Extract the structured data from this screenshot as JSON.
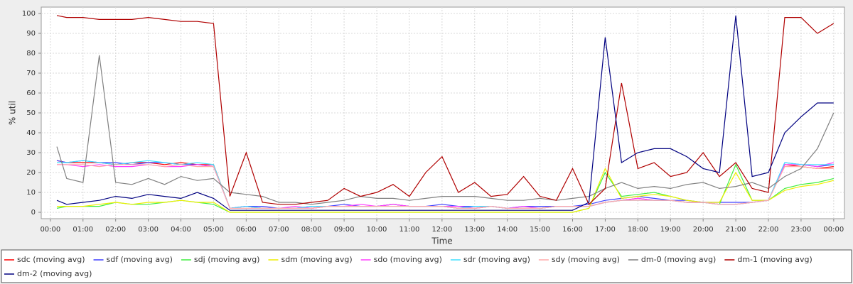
{
  "chart_data": {
    "type": "line",
    "x_label": "Time",
    "y_label": "% util",
    "x": [
      0.2,
      0.5,
      1.0,
      1.5,
      2.0,
      2.5,
      3.0,
      3.5,
      4.0,
      4.5,
      5.0,
      5.5,
      6.0,
      6.5,
      7.0,
      7.5,
      8.0,
      8.5,
      9.0,
      9.5,
      10.0,
      10.5,
      11.0,
      11.5,
      12.0,
      12.5,
      13.0,
      13.5,
      14.0,
      14.5,
      15.0,
      15.5,
      16.0,
      16.5,
      17.0,
      17.5,
      18.0,
      18.5,
      19.0,
      19.5,
      20.0,
      20.5,
      21.0,
      21.5,
      22.0,
      22.5,
      23.0,
      23.5,
      24.0
    ],
    "xlim": [
      -0.28,
      24.33
    ],
    "xticks": [
      {
        "value": 0,
        "label": "00:00"
      },
      {
        "value": 1,
        "label": "01:00"
      },
      {
        "value": 2,
        "label": "02:00"
      },
      {
        "value": 3,
        "label": "03:00"
      },
      {
        "value": 4,
        "label": "04:00"
      },
      {
        "value": 5,
        "label": "05:00"
      },
      {
        "value": 6,
        "label": "06:00"
      },
      {
        "value": 7,
        "label": "07:00"
      },
      {
        "value": 8,
        "label": "08:00"
      },
      {
        "value": 9,
        "label": "09:00"
      },
      {
        "value": 10,
        "label": "10:00"
      },
      {
        "value": 11,
        "label": "11:00"
      },
      {
        "value": 12,
        "label": "12:00"
      },
      {
        "value": 13,
        "label": "13:00"
      },
      {
        "value": 14,
        "label": "14:00"
      },
      {
        "value": 15,
        "label": "15:00"
      },
      {
        "value": 16,
        "label": "16:00"
      },
      {
        "value": 17,
        "label": "17:00"
      },
      {
        "value": 18,
        "label": "18:00"
      },
      {
        "value": 19,
        "label": "19:00"
      },
      {
        "value": 20,
        "label": "20:00"
      },
      {
        "value": 21,
        "label": "21:00"
      },
      {
        "value": 22,
        "label": "22:00"
      },
      {
        "value": 23,
        "label": "23:00"
      },
      {
        "value": 24,
        "label": "00:00"
      }
    ],
    "ylim": [
      -3.2,
      103.2
    ],
    "yticks": [
      0,
      10,
      20,
      30,
      40,
      50,
      60,
      70,
      80,
      90,
      100
    ],
    "grid": true,
    "legend": "bottom",
    "series": [
      {
        "name": "sdc (moving avg)",
        "color": "#ff0000",
        "values": [
          26,
          25,
          25,
          25,
          24,
          25,
          25,
          24,
          25,
          24,
          24,
          2,
          3,
          2,
          2,
          2,
          2,
          3,
          3,
          3,
          3,
          4,
          3,
          3,
          3,
          2,
          2,
          3,
          2,
          2,
          2,
          3,
          3,
          3,
          5,
          6,
          7,
          6,
          6,
          5,
          5,
          4,
          4,
          5,
          6,
          24,
          23,
          22,
          23
        ]
      },
      {
        "name": "sdf (moving avg)",
        "color": "#4040ff",
        "values": [
          26,
          25,
          26,
          25,
          25,
          24,
          25,
          25,
          24,
          24,
          23,
          2,
          3,
          3,
          2,
          2,
          3,
          3,
          4,
          3,
          3,
          4,
          3,
          3,
          4,
          3,
          3,
          3,
          2,
          3,
          3,
          3,
          3,
          4,
          6,
          7,
          8,
          7,
          6,
          6,
          5,
          5,
          5,
          5,
          6,
          25,
          24,
          23,
          24
        ]
      },
      {
        "name": "sdj (moving avg)",
        "color": "#40ee40",
        "values": [
          2,
          3,
          3,
          3,
          5,
          4,
          4,
          5,
          6,
          5,
          4,
          0,
          0,
          0,
          0,
          0,
          0,
          0,
          0,
          0,
          0,
          0,
          0,
          0,
          0,
          0,
          0,
          0,
          0,
          0,
          0,
          0,
          0,
          2,
          20,
          8,
          9,
          10,
          8,
          6,
          5,
          4,
          24,
          6,
          6,
          12,
          14,
          15,
          17
        ]
      },
      {
        "name": "sdm (moving avg)",
        "color": "#eeee00",
        "values": [
          3,
          3,
          3,
          4,
          5,
          4,
          5,
          5,
          6,
          5,
          5,
          0,
          0,
          0,
          0,
          0,
          0,
          0,
          0,
          0,
          0,
          0,
          0,
          0,
          0,
          0,
          0,
          0,
          0,
          0,
          0,
          0,
          0,
          2,
          22,
          7,
          8,
          9,
          8,
          6,
          5,
          5,
          20,
          6,
          6,
          11,
          13,
          14,
          16
        ]
      },
      {
        "name": "sdo (moving avg)",
        "color": "#ff40ff",
        "values": [
          24,
          24,
          23,
          24,
          23,
          23,
          24,
          23,
          23,
          24,
          23,
          2,
          3,
          2,
          2,
          3,
          2,
          3,
          3,
          4,
          3,
          4,
          3,
          3,
          3,
          3,
          2,
          3,
          2,
          3,
          2,
          3,
          3,
          3,
          5,
          6,
          7,
          6,
          6,
          5,
          5,
          4,
          4,
          5,
          6,
          24,
          24,
          23,
          25
        ]
      },
      {
        "name": "sdr (moving avg)",
        "color": "#40e0ff",
        "values": [
          25,
          25,
          26,
          25,
          24,
          25,
          26,
          25,
          24,
          25,
          24,
          2,
          3,
          2,
          2,
          2,
          3,
          3,
          3,
          3,
          3,
          3,
          3,
          3,
          3,
          2,
          3,
          3,
          2,
          2,
          2,
          3,
          3,
          3,
          5,
          6,
          6,
          6,
          6,
          5,
          5,
          4,
          4,
          5,
          6,
          25,
          24,
          24,
          24
        ]
      },
      {
        "name": "sdy (moving avg)",
        "color": "#ffaaaa",
        "values": [
          24,
          24,
          24,
          23,
          24,
          24,
          24,
          23,
          24,
          23,
          23,
          2,
          2,
          2,
          2,
          2,
          2,
          3,
          3,
          3,
          3,
          3,
          3,
          3,
          3,
          2,
          2,
          3,
          2,
          2,
          2,
          3,
          3,
          3,
          5,
          6,
          6,
          6,
          6,
          5,
          5,
          4,
          4,
          5,
          6,
          23,
          23,
          22,
          22
        ]
      },
      {
        "name": "dm-0 (moving avg)",
        "color": "#808080",
        "values": [
          33,
          17,
          15,
          79,
          15,
          14,
          17,
          14,
          18,
          16,
          17,
          10,
          9,
          8,
          5,
          5,
          4,
          5,
          6,
          8,
          7,
          7,
          6,
          7,
          8,
          8,
          8,
          7,
          6,
          6,
          7,
          6,
          7,
          8,
          12,
          15,
          12,
          13,
          12,
          14,
          15,
          12,
          13,
          15,
          12,
          18,
          22,
          32,
          50
        ]
      },
      {
        "name": "dm-1 (moving avg)",
        "color": "#b00000",
        "values": [
          99,
          98,
          98,
          97,
          97,
          97,
          98,
          97,
          96,
          96,
          95,
          8,
          30,
          5,
          4,
          4,
          5,
          6,
          12,
          8,
          10,
          14,
          8,
          20,
          28,
          10,
          15,
          8,
          9,
          18,
          8,
          6,
          22,
          4,
          12,
          65,
          22,
          25,
          18,
          20,
          30,
          18,
          25,
          12,
          10,
          98,
          98,
          90,
          95
        ]
      },
      {
        "name": "dm-2 (moving avg)",
        "color": "#000080",
        "values": [
          6,
          4,
          5,
          6,
          8,
          7,
          9,
          8,
          7,
          10,
          7,
          1,
          1,
          1,
          1,
          1,
          1,
          1,
          1,
          1,
          1,
          1,
          1,
          1,
          1,
          1,
          1,
          1,
          1,
          1,
          1,
          1,
          1,
          5,
          88,
          25,
          30,
          32,
          32,
          28,
          22,
          20,
          99,
          18,
          20,
          40,
          48,
          55,
          55
        ]
      }
    ]
  }
}
